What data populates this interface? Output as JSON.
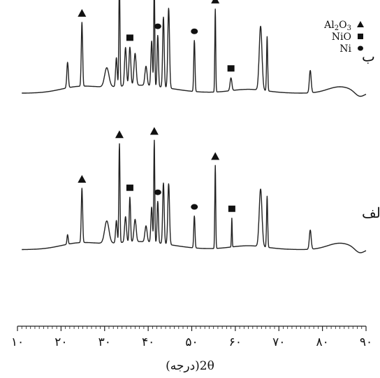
{
  "chart_data": {
    "type": "line",
    "xlabel": "2θ(درجه)",
    "x_tick_labels": [
      "۱۰",
      "۲۰",
      "۳۰",
      "۴۰",
      "۵۰",
      "۶۰",
      "۷۰",
      "۸۰",
      "۹۰"
    ],
    "x_ticks": [
      10,
      20,
      30,
      40,
      50,
      60,
      70,
      80,
      90
    ],
    "xlim": [
      10,
      90
    ],
    "legend": {
      "placement": "top-right",
      "entries": [
        {
          "label_main": "Al",
          "label_sub1": "2",
          "label_mid": "O",
          "label_sub2": "3",
          "marker": "triangle"
        },
        {
          "label_main": "NiO",
          "marker": "square"
        },
        {
          "label_main": "Ni",
          "marker": "circle"
        }
      ]
    },
    "series": [
      {
        "name": "ب",
        "baseline_level": 0.73,
        "peaks": [
          {
            "x": 21.5,
            "h": 0.08,
            "w": 0.25
          },
          {
            "x": 24.8,
            "h": 0.2,
            "w": 0.22,
            "marker": "triangle"
          },
          {
            "x": 30.5,
            "h": 0.06,
            "w": 0.7
          },
          {
            "x": 32.7,
            "h": 0.09,
            "w": 0.25
          },
          {
            "x": 33.4,
            "h": 0.33,
            "w": 0.18,
            "marker": "triangle"
          },
          {
            "x": 34.8,
            "h": 0.12,
            "w": 0.3
          },
          {
            "x": 35.8,
            "h": 0.12,
            "w": 0.3,
            "marker": "square"
          },
          {
            "x": 37.0,
            "h": 0.1,
            "w": 0.35
          },
          {
            "x": 39.5,
            "h": 0.06,
            "w": 0.35
          },
          {
            "x": 40.8,
            "h": 0.14,
            "w": 0.25
          },
          {
            "x": 41.4,
            "h": 0.33,
            "w": 0.16,
            "marker": "triangle"
          },
          {
            "x": 42.2,
            "h": 0.16,
            "w": 0.22,
            "marker": "circle"
          },
          {
            "x": 43.5,
            "h": 0.22,
            "w": 0.25
          },
          {
            "x": 44.7,
            "h": 0.25,
            "w": 0.28
          },
          {
            "x": 50.6,
            "h": 0.16,
            "w": 0.2,
            "marker": "circle"
          },
          {
            "x": 55.4,
            "h": 0.26,
            "w": 0.15,
            "marker": "triangle"
          },
          {
            "x": 59.0,
            "h": 0.04,
            "w": 0.3,
            "marker": "square"
          },
          {
            "x": 65.8,
            "h": 0.2,
            "w": 0.45
          },
          {
            "x": 67.3,
            "h": 0.17,
            "w": 0.18
          },
          {
            "x": 77.2,
            "h": 0.07,
            "w": 0.3
          }
        ]
      },
      {
        "name": "الف",
        "baseline_level": 0.24,
        "peaks": [
          {
            "x": 21.5,
            "h": 0.03,
            "w": 0.2
          },
          {
            "x": 24.8,
            "h": 0.17,
            "w": 0.22,
            "marker": "triangle"
          },
          {
            "x": 30.5,
            "h": 0.07,
            "w": 0.7
          },
          {
            "x": 32.7,
            "h": 0.07,
            "w": 0.25
          },
          {
            "x": 33.4,
            "h": 0.31,
            "w": 0.18,
            "marker": "triangle"
          },
          {
            "x": 34.8,
            "h": 0.08,
            "w": 0.3
          },
          {
            "x": 35.8,
            "h": 0.14,
            "w": 0.22,
            "marker": "square"
          },
          {
            "x": 37.0,
            "h": 0.07,
            "w": 0.35
          },
          {
            "x": 39.5,
            "h": 0.05,
            "w": 0.35
          },
          {
            "x": 40.8,
            "h": 0.11,
            "w": 0.25
          },
          {
            "x": 41.4,
            "h": 0.32,
            "w": 0.16,
            "marker": "triangle"
          },
          {
            "x": 42.2,
            "h": 0.13,
            "w": 0.22,
            "marker": "circle"
          },
          {
            "x": 43.5,
            "h": 0.19,
            "w": 0.25
          },
          {
            "x": 44.7,
            "h": 0.19,
            "w": 0.28
          },
          {
            "x": 50.6,
            "h": 0.1,
            "w": 0.2,
            "marker": "circle"
          },
          {
            "x": 55.4,
            "h": 0.26,
            "w": 0.15,
            "marker": "triangle"
          },
          {
            "x": 59.2,
            "h": 0.09,
            "w": 0.12,
            "marker": "square"
          },
          {
            "x": 65.8,
            "h": 0.18,
            "w": 0.45
          },
          {
            "x": 67.3,
            "h": 0.16,
            "w": 0.18
          },
          {
            "x": 77.2,
            "h": 0.06,
            "w": 0.3
          }
        ]
      }
    ]
  }
}
